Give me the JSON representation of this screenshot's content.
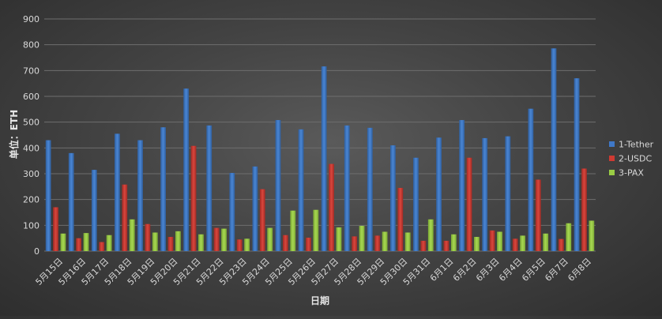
{
  "chart_data": {
    "type": "bar",
    "title": "",
    "xlabel": "日期",
    "ylabel": "单位：ETH",
    "ylim": [
      0,
      900
    ],
    "yticks": [
      0,
      100,
      200,
      300,
      400,
      500,
      600,
      700,
      800,
      900
    ],
    "grid": true,
    "legend_position": "right",
    "categories": [
      "5月15日",
      "5月16日",
      "5月17日",
      "5月18日",
      "5月19日",
      "5月20日",
      "5月21日",
      "5月22日",
      "5月23日",
      "5月24日",
      "5月25日",
      "5月26日",
      "5月27日",
      "5月28日",
      "5月29日",
      "5月30日",
      "5月31日",
      "6月1日",
      "6月2日",
      "6月3日",
      "6月4日",
      "6月5日",
      "6月7日",
      "6月8日"
    ],
    "series": [
      {
        "name": "1-Tether",
        "color": "#3f78c8",
        "values": [
          430,
          380,
          315,
          455,
          430,
          480,
          630,
          487,
          303,
          328,
          508,
          472,
          716,
          487,
          478,
          410,
          362,
          440,
          508,
          438,
          445,
          552,
          786,
          670
        ]
      },
      {
        "name": "2-USDC",
        "color": "#cf3a32",
        "values": [
          170,
          50,
          35,
          258,
          105,
          55,
          408,
          90,
          45,
          240,
          62,
          52,
          338,
          57,
          60,
          245,
          40,
          40,
          362,
          80,
          48,
          277,
          47,
          320
        ]
      },
      {
        "name": "3-PAX",
        "color": "#9acd45",
        "values": [
          68,
          70,
          62,
          123,
          72,
          77,
          65,
          87,
          48,
          90,
          157,
          160,
          92,
          98,
          75,
          72,
          123,
          65,
          55,
          75,
          60,
          68,
          108,
          118
        ]
      }
    ]
  }
}
